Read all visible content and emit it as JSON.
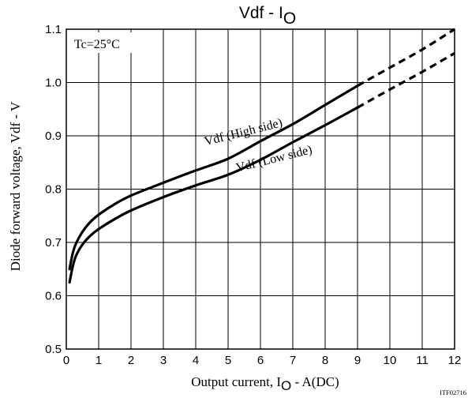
{
  "chart_data": {
    "type": "line",
    "title": "Vdf - I",
    "title_subscript": "O",
    "xlabel_prefix": "Output current, I",
    "xlabel_subscript": "O",
    "xlabel_suffix": " - A(DC)",
    "ylabel": "Diode forward voltage, Vdf - V",
    "xlim": [
      0,
      12
    ],
    "ylim": [
      0.5,
      1.1
    ],
    "xticks": [
      0,
      1,
      2,
      3,
      4,
      5,
      6,
      7,
      8,
      9,
      10,
      11,
      12
    ],
    "yticks": [
      0.5,
      0.6,
      0.7,
      0.8,
      0.9,
      1.0,
      1.1
    ],
    "ytick_labels": [
      "0.5",
      "0.6",
      "0.7",
      "0.8",
      "0.9",
      "1.0",
      "1.1"
    ],
    "grid": true,
    "condition_label": "Tc=25°C",
    "figure_code": "ITF02716",
    "series": [
      {
        "name": "Vdf (High side)",
        "label_angle": -14,
        "label_anchor": [
          5.5,
          0.9
        ],
        "solid": [
          [
            0.1,
            0.65
          ],
          [
            0.2,
            0.68
          ],
          [
            0.3,
            0.698
          ],
          [
            0.5,
            0.72
          ],
          [
            0.75,
            0.739
          ],
          [
            1.0,
            0.752
          ],
          [
            1.5,
            0.772
          ],
          [
            2.0,
            0.788
          ],
          [
            3.0,
            0.812
          ],
          [
            4.0,
            0.835
          ],
          [
            5.0,
            0.857
          ],
          [
            6.0,
            0.89
          ],
          [
            7.0,
            0.922
          ],
          [
            8.0,
            0.958
          ],
          [
            9.0,
            0.994
          ]
        ],
        "dashed": [
          [
            9.0,
            0.994
          ],
          [
            10.0,
            1.028
          ],
          [
            11.0,
            1.062
          ],
          [
            12.0,
            1.1
          ]
        ]
      },
      {
        "name": "Vdf (Low side)",
        "label_angle": -14,
        "label_anchor": [
          6.45,
          0.85
        ],
        "solid": [
          [
            0.1,
            0.625
          ],
          [
            0.2,
            0.655
          ],
          [
            0.3,
            0.675
          ],
          [
            0.5,
            0.696
          ],
          [
            0.75,
            0.713
          ],
          [
            1.0,
            0.725
          ],
          [
            1.5,
            0.744
          ],
          [
            2.0,
            0.76
          ],
          [
            3.0,
            0.785
          ],
          [
            4.0,
            0.807
          ],
          [
            5.0,
            0.827
          ],
          [
            6.0,
            0.855
          ],
          [
            7.0,
            0.888
          ],
          [
            8.0,
            0.92
          ],
          [
            9.0,
            0.953
          ]
        ],
        "dashed": [
          [
            9.0,
            0.953
          ],
          [
            10.0,
            0.987
          ],
          [
            11.0,
            1.02
          ],
          [
            12.0,
            1.055
          ]
        ]
      }
    ]
  }
}
